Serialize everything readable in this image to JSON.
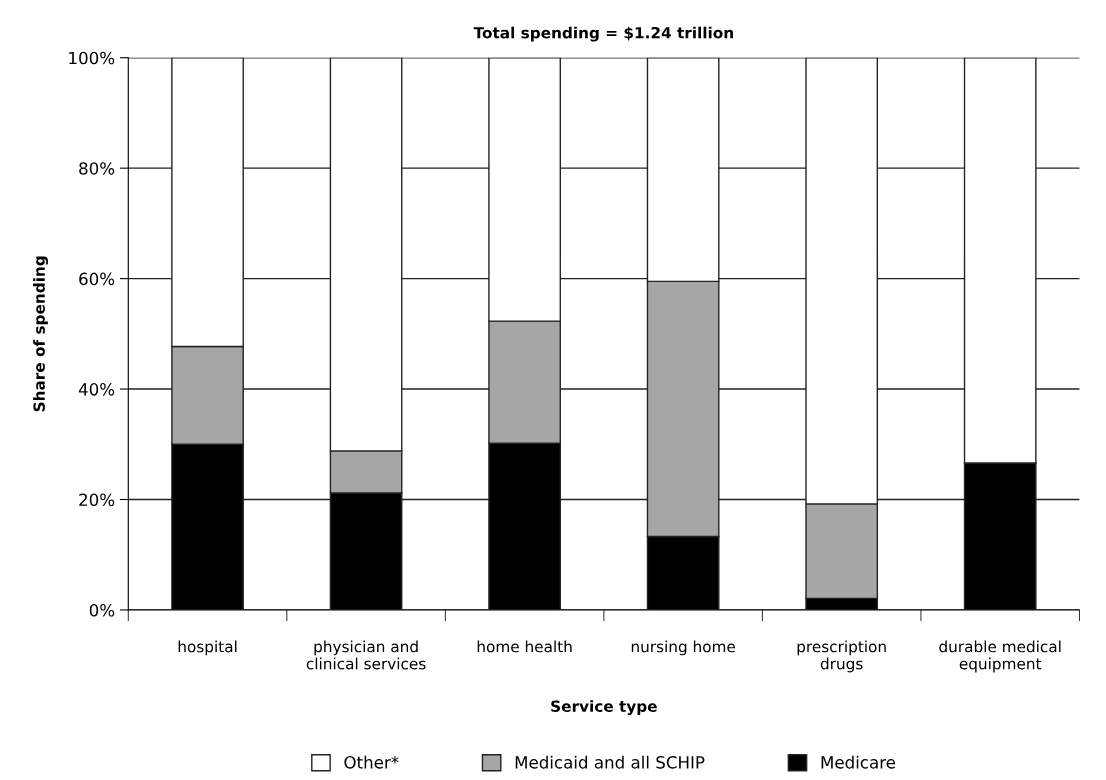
{
  "chart_data": {
    "type": "bar",
    "title": "Total spending = $1.24 trillion",
    "xlabel": "Service type",
    "ylabel": "Share of spending",
    "categories": [
      "hospital",
      "physician and\nclinical services",
      "home health",
      "nursing home",
      "prescription\ndrugs",
      "durable medical\nequipment"
    ],
    "stacked": true,
    "series": [
      {
        "name": "Medicare",
        "color": "#000000",
        "values": [
          30.0,
          21.2,
          30.2,
          13.3,
          2.1,
          26.6
        ]
      },
      {
        "name": "Medicaid and all SCHIP",
        "color": "#a6a6a6",
        "values": [
          17.7,
          7.6,
          22.1,
          46.2,
          17.1,
          0
        ]
      },
      {
        "name": "Other*",
        "color": "#ffffff",
        "values": [
          52.3,
          71.2,
          47.7,
          40.5,
          80.8,
          73.4
        ]
      }
    ],
    "ylim": [
      0,
      100
    ],
    "yticks": [
      {
        "value": 0,
        "label": "0%"
      },
      {
        "value": 20,
        "label": "20%"
      },
      {
        "value": 40,
        "label": "40%"
      },
      {
        "value": 60,
        "label": "60%"
      },
      {
        "value": 80,
        "label": "80%"
      },
      {
        "value": 100,
        "label": "100%"
      }
    ],
    "grid": "y",
    "legend": "bottom"
  }
}
